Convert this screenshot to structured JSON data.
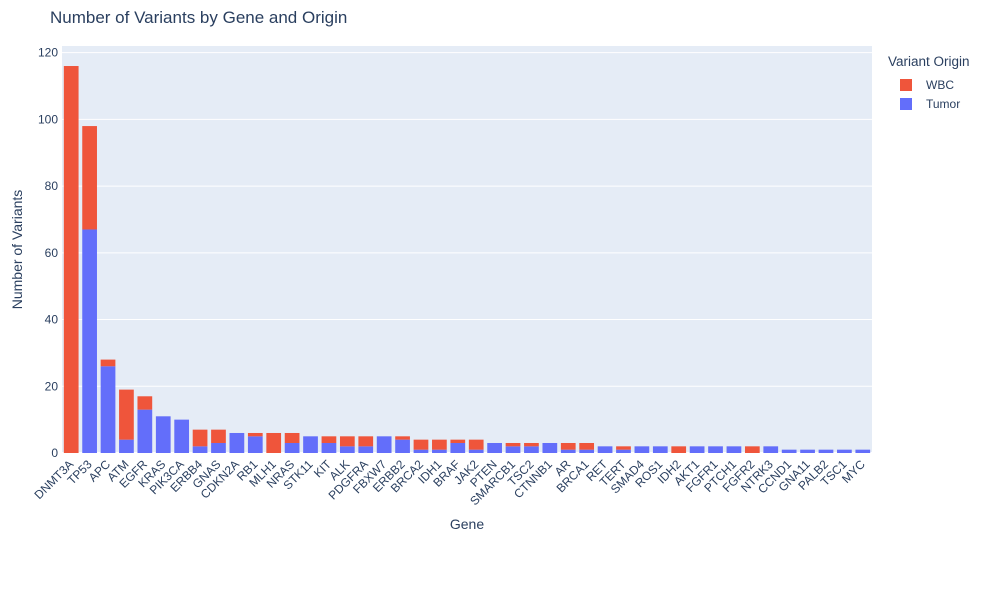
{
  "chart_data": {
    "type": "bar",
    "barmode": "stack",
    "title": "Number of Variants by Gene and Origin",
    "xlabel": "Gene",
    "ylabel": "Number of Variants",
    "ylim": [
      0,
      122
    ],
    "yticks": [
      0,
      20,
      40,
      60,
      80,
      100,
      120
    ],
    "grid": true,
    "legend_title": "Variant Origin",
    "legend_position": "top-right",
    "categories": [
      "DNMT3A",
      "TP53",
      "APC",
      "ATM",
      "EGFR",
      "KRAS",
      "PIK3CA",
      "ERBB4",
      "GNAS",
      "CDKN2A",
      "RB1",
      "MLH1",
      "NRAS",
      "STK11",
      "KIT",
      "ALK",
      "PDGFRA",
      "FBXW7",
      "ERBB2",
      "BRCA2",
      "IDH1",
      "BRAF",
      "JAK2",
      "PTEN",
      "SMARCB1",
      "TSC2",
      "CTNNB1",
      "AR",
      "BRCA1",
      "RET",
      "TERT",
      "SMAD4",
      "ROS1",
      "IDH2",
      "AKT1",
      "FGFR1",
      "PTCH1",
      "FGFR2",
      "NTRK3",
      "CCND1",
      "GNA11",
      "PALB2",
      "TSC1",
      "MYC"
    ],
    "series": [
      {
        "name": "Tumor",
        "color": "#636efa",
        "values": [
          0,
          67,
          26,
          4,
          13,
          11,
          10,
          2,
          3,
          6,
          5,
          0,
          3,
          5,
          3,
          2,
          2,
          5,
          4,
          1,
          1,
          3,
          1,
          3,
          2,
          2,
          3,
          1,
          1,
          2,
          1,
          2,
          2,
          0,
          2,
          2,
          2,
          0,
          2,
          1,
          1,
          1,
          1,
          1
        ]
      },
      {
        "name": "WBC",
        "color": "#ef553b",
        "values": [
          116,
          31,
          2,
          15,
          4,
          0,
          0,
          5,
          4,
          0,
          1,
          6,
          3,
          0,
          2,
          3,
          3,
          0,
          1,
          3,
          3,
          1,
          3,
          0,
          1,
          1,
          0,
          2,
          2,
          0,
          1,
          0,
          0,
          2,
          0,
          0,
          0,
          2,
          0,
          0,
          0,
          0,
          0,
          0
        ]
      }
    ],
    "legend_order": [
      "WBC",
      "Tumor"
    ],
    "colors": {
      "plot_bg": "#e5ecf6",
      "grid": "#ffffff",
      "text": "#2a3f5f"
    }
  }
}
